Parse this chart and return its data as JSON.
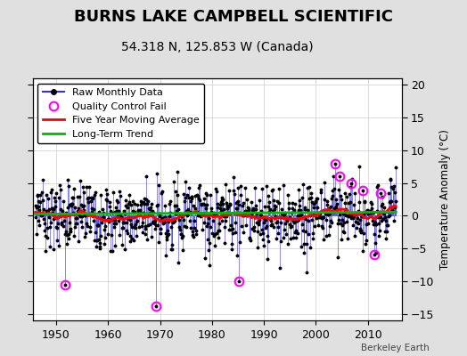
{
  "title": "BURNS LAKE CAMPBELL SCIENTIFIC",
  "subtitle": "54.318 N, 125.853 W (Canada)",
  "ylabel": "Temperature Anomaly (°C)",
  "watermark": "Berkeley Earth",
  "ylim": [
    -16,
    21
  ],
  "yticks": [
    -15,
    -10,
    -5,
    0,
    5,
    10,
    15,
    20
  ],
  "xlim": [
    1945.5,
    2016.5
  ],
  "xticks": [
    1950,
    1960,
    1970,
    1980,
    1990,
    2000,
    2010
  ],
  "start_year": 1946.0,
  "end_year": 2015.5,
  "seed": 37,
  "raw_color": "#3333DD",
  "dot_color": "#000000",
  "ma_color": "#FF0000",
  "trend_color": "#00BB00",
  "qc_color": "#FF00FF",
  "bg_color": "#E0E0E0",
  "plot_bg_color": "#FFFFFF",
  "title_fontsize": 13,
  "subtitle_fontsize": 10,
  "label_fontsize": 8.5,
  "tick_fontsize": 9,
  "legend_fontsize": 8
}
